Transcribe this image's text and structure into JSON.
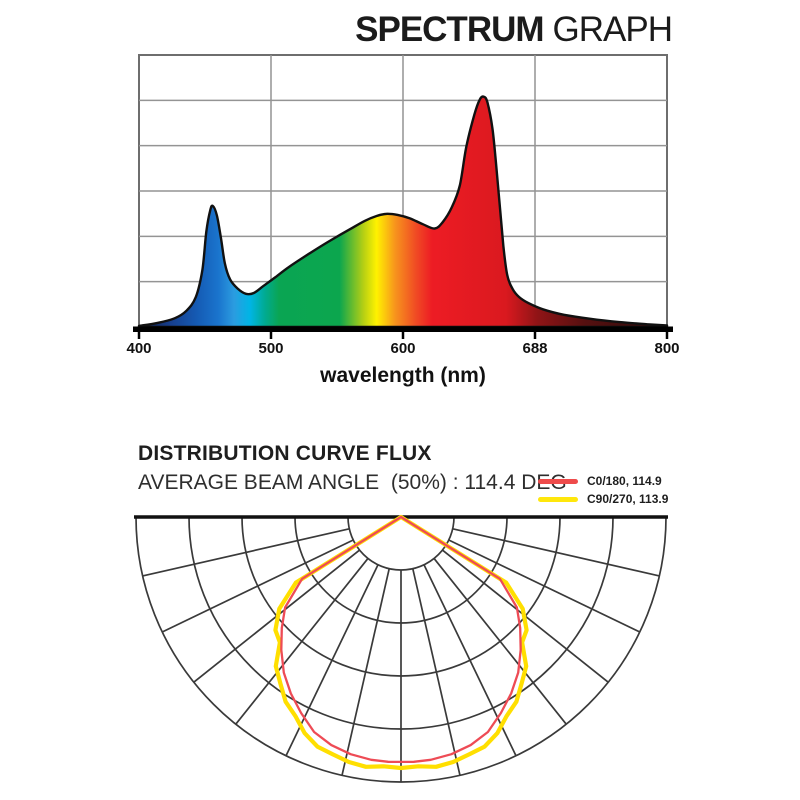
{
  "page": {
    "background": "#ffffff"
  },
  "spectrum": {
    "title_heavy": "SPECTRUM",
    "title_light": "GRAPH",
    "x_axis_title": "wavelength (nm)"
  },
  "distribution": {
    "title": "DISTRIBUTION CURVE FLUX",
    "subtitle": "AVERAGE BEAM ANGLE  (50%) : 114.4 DEG",
    "legend": [
      {
        "label": "C0/180, 114.9",
        "color": "#ee4b4b"
      },
      {
        "label": "C90/270, 113.9",
        "color": "#ffe70c"
      }
    ]
  },
  "chart_data": [
    {
      "type": "area",
      "title": "SPECTRUM GRAPH",
      "xlabel": "wavelength (nm)",
      "xlim": [
        400,
        800
      ],
      "ylim": [
        0,
        1
      ],
      "x_ticks": [
        400,
        500,
        600,
        688,
        800
      ],
      "x_tick_labels": [
        "400",
        "500",
        "600",
        "688",
        "800"
      ],
      "grid_rows": 6,
      "grid_on": true,
      "outline_color": "#111111",
      "points": [
        [
          400,
          0.004
        ],
        [
          414,
          0.015
        ],
        [
          427,
          0.032
        ],
        [
          436,
          0.06
        ],
        [
          443,
          0.11
        ],
        [
          448,
          0.21
        ],
        [
          451,
          0.35
        ],
        [
          454,
          0.43
        ],
        [
          456,
          0.445
        ],
        [
          459,
          0.41
        ],
        [
          462,
          0.33
        ],
        [
          465,
          0.235
        ],
        [
          469,
          0.175
        ],
        [
          475,
          0.14
        ],
        [
          481,
          0.122
        ],
        [
          487,
          0.125
        ],
        [
          494,
          0.15
        ],
        [
          503,
          0.182
        ],
        [
          514,
          0.222
        ],
        [
          530,
          0.273
        ],
        [
          545,
          0.318
        ],
        [
          560,
          0.36
        ],
        [
          571,
          0.39
        ],
        [
          580,
          0.408
        ],
        [
          588,
          0.416
        ],
        [
          596,
          0.412
        ],
        [
          605,
          0.4
        ],
        [
          615,
          0.378
        ],
        [
          624,
          0.362
        ],
        [
          630,
          0.385
        ],
        [
          637,
          0.44
        ],
        [
          643,
          0.52
        ],
        [
          648,
          0.664
        ],
        [
          654,
          0.78
        ],
        [
          658,
          0.835
        ],
        [
          661,
          0.847
        ],
        [
          664,
          0.825
        ],
        [
          668,
          0.72
        ],
        [
          672,
          0.52
        ],
        [
          676,
          0.3
        ],
        [
          679,
          0.19
        ],
        [
          683,
          0.14
        ],
        [
          688,
          0.11
        ],
        [
          695,
          0.088
        ],
        [
          706,
          0.065
        ],
        [
          722,
          0.045
        ],
        [
          742,
          0.03
        ],
        [
          764,
          0.018
        ],
        [
          785,
          0.01
        ],
        [
          800,
          0.006
        ]
      ],
      "gradient_stops": [
        {
          "wavelength": 400,
          "color": "#101b42"
        },
        {
          "wavelength": 424,
          "color": "#173f8e"
        },
        {
          "wavelength": 444,
          "color": "#155bb4"
        },
        {
          "wavelength": 460,
          "color": "#1a74cd"
        },
        {
          "wavelength": 472,
          "color": "#2b9ce0"
        },
        {
          "wavelength": 484,
          "color": "#00b5e5"
        },
        {
          "wavelength": 495,
          "color": "#00ab94"
        },
        {
          "wavelength": 506,
          "color": "#0aa553"
        },
        {
          "wavelength": 552,
          "color": "#0ca64e"
        },
        {
          "wavelength": 570,
          "color": "#b5cf14"
        },
        {
          "wavelength": 580,
          "color": "#fff200"
        },
        {
          "wavelength": 594,
          "color": "#f7941d"
        },
        {
          "wavelength": 610,
          "color": "#f04a24"
        },
        {
          "wavelength": 622,
          "color": "#ed1c24"
        },
        {
          "wavelength": 678,
          "color": "#da191f"
        },
        {
          "wavelength": 702,
          "color": "#8f1416"
        },
        {
          "wavelength": 738,
          "color": "#551010"
        },
        {
          "wavelength": 800,
          "color": "#2b0a0a"
        }
      ]
    },
    {
      "type": "polar-beam",
      "title": "DISTRIBUTION CURVE FLUX",
      "average_beam_angle_deg": 114.4,
      "rings": 5,
      "spokes_per_half": 7,
      "grid_color": "#3a3a3a",
      "axis_line_color": "#111111",
      "series": [
        {
          "name": "C90/270, 113.9",
          "color": "#ffdf00",
          "width": 4.2,
          "samples": [
            [
              90,
              0
            ],
            [
              58,
              0.468
            ],
            [
              53,
              0.575
            ],
            [
              48,
              0.638
            ],
            [
              44,
              0.658
            ],
            [
              40,
              0.735
            ],
            [
              36,
              0.775
            ],
            [
              32,
              0.822
            ],
            [
              28,
              0.85
            ],
            [
              24,
              0.893
            ],
            [
              20,
              0.922
            ],
            [
              16,
              0.932
            ],
            [
              12,
              0.945
            ],
            [
              8,
              0.952
            ],
            [
              4,
              0.943
            ],
            [
              0,
              0.947
            ]
          ]
        },
        {
          "name": "C0/180, 114.9",
          "color": "#ee4b55",
          "width": 2.3,
          "samples": [
            [
              90,
              0
            ],
            [
              58,
              0.44
            ],
            [
              52,
              0.555
            ],
            [
              47,
              0.615
            ],
            [
              42,
              0.675
            ],
            [
              37,
              0.735
            ],
            [
              32,
              0.785
            ],
            [
              27,
              0.83
            ],
            [
              22,
              0.875
            ],
            [
              17,
              0.9
            ],
            [
              12,
              0.915
            ],
            [
              7,
              0.923
            ],
            [
              3,
              0.925
            ],
            [
              0,
              0.924
            ]
          ]
        }
      ]
    }
  ]
}
